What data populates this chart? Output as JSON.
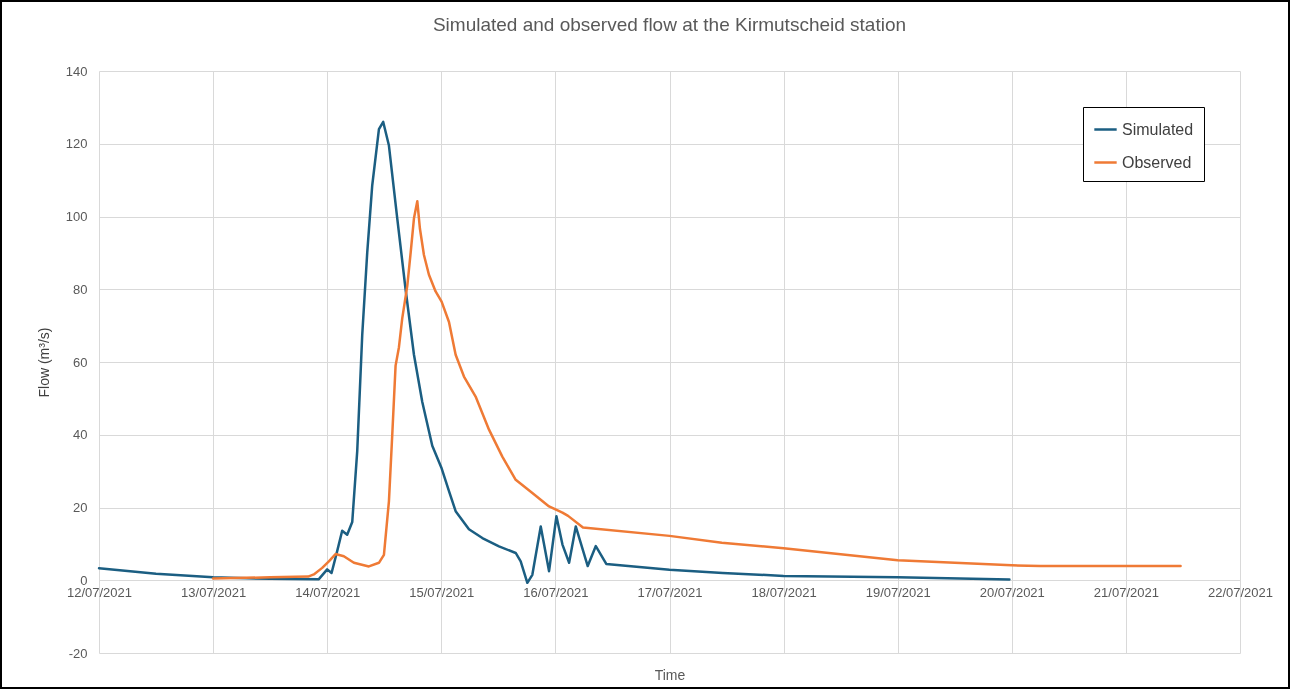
{
  "chart_data": {
    "type": "line",
    "title": "Simulated and observed flow at the Kirmutscheid station",
    "xlabel": "Time",
    "ylabel": "Flow  (m³/s)",
    "xlim": [
      "2021-07-12T00:00",
      "2021-07-22T00:00"
    ],
    "xticks": [
      {
        "value": "2021-07-12T00:00",
        "label": "12/07/2021"
      },
      {
        "value": "2021-07-13T00:00",
        "label": "13/07/2021"
      },
      {
        "value": "2021-07-14T00:00",
        "label": "14/07/2021"
      },
      {
        "value": "2021-07-15T00:00",
        "label": "15/07/2021"
      },
      {
        "value": "2021-07-16T00:00",
        "label": "16/07/2021"
      },
      {
        "value": "2021-07-17T00:00",
        "label": "17/07/2021"
      },
      {
        "value": "2021-07-18T00:00",
        "label": "18/07/2021"
      },
      {
        "value": "2021-07-19T00:00",
        "label": "19/07/2021"
      },
      {
        "value": "2021-07-20T00:00",
        "label": "20/07/2021"
      },
      {
        "value": "2021-07-21T00:00",
        "label": "21/07/2021"
      },
      {
        "value": "2021-07-22T00:00",
        "label": "22/07/2021"
      }
    ],
    "ylim": [
      -20,
      140
    ],
    "yticks": [
      -20,
      0,
      20,
      40,
      60,
      80,
      100,
      120,
      140
    ],
    "grid": true,
    "legend": "top right",
    "marker": "none",
    "line_style": "solid",
    "series": [
      {
        "name": "Simulated",
        "color": "#1b5e82",
        "x": [
          "2021-07-12T00:00",
          "2021-07-12T12:00",
          "2021-07-13T00:00",
          "2021-07-13T12:00",
          "2021-07-13T22:15",
          "2021-07-14T00:00",
          "2021-07-14T00:55",
          "2021-07-14T02:06",
          "2021-07-14T03:09",
          "2021-07-14T04:12",
          "2021-07-14T05:16",
          "2021-07-14T06:19",
          "2021-07-14T07:22",
          "2021-07-14T08:25",
          "2021-07-14T09:28",
          "2021-07-14T10:53",
          "2021-07-14T11:47",
          "2021-07-14T12:59",
          "2021-07-14T14:44",
          "2021-07-14T16:29",
          "2021-07-14T18:15",
          "2021-07-14T20:00",
          "2021-07-14T22:06",
          "2021-07-15T00:00",
          "2021-07-15T01:37",
          "2021-07-15T03:01",
          "2021-07-15T05:49",
          "2021-07-15T08:38",
          "2021-07-15T12:08",
          "2021-07-15T15:39",
          "2021-07-15T16:42",
          "2021-07-15T18:06",
          "2021-07-15T19:09",
          "2021-07-15T20:55",
          "2021-07-15T22:40",
          "2021-07-16T00:13",
          "2021-07-16T01:29",
          "2021-07-16T02:53",
          "2021-07-16T04:17",
          "2021-07-16T06:48",
          "2021-07-16T08:30",
          "2021-07-16T10:42",
          "2021-07-17T00:00",
          "2021-07-17T11:12",
          "2021-07-18T00:00",
          "2021-07-19T00:00",
          "2021-07-19T23:30"
        ],
        "values": [
          3.3,
          1.8,
          0.8,
          0.4,
          0.3,
          3,
          2,
          8,
          13.6,
          12.5,
          16,
          35.5,
          67.4,
          90,
          108.5,
          124,
          126,
          119.5,
          99.5,
          80,
          62,
          49,
          37,
          31,
          24.5,
          19,
          14,
          11.6,
          9.3,
          7.5,
          5.2,
          -0.7,
          1.5,
          14.8,
          2.5,
          17.6,
          9.8,
          4.8,
          14.8,
          3.9,
          9.4,
          4.5,
          2.9,
          2,
          1.2,
          0.8,
          0.2
        ]
      },
      {
        "name": "Observed",
        "color": "#ef7a35",
        "x": [
          "2021-07-13T00:00",
          "2021-07-13T12:00",
          "2021-07-13T20:00",
          "2021-07-13T21:11",
          "2021-07-13T22:57",
          "2021-07-14T00:21",
          "2021-07-14T01:45",
          "2021-07-14T03:30",
          "2021-07-14T05:37",
          "2021-07-14T08:46",
          "2021-07-14T10:53",
          "2021-07-14T11:56",
          "2021-07-14T12:59",
          "2021-07-14T13:41",
          "2021-07-14T14:23",
          "2021-07-14T15:05",
          "2021-07-14T15:47",
          "2021-07-14T16:51",
          "2021-07-14T17:33",
          "2021-07-14T18:15",
          "2021-07-14T18:57",
          "2021-07-14T19:30",
          "2021-07-14T20:21",
          "2021-07-14T21:24",
          "2021-07-14T22:48",
          "2021-07-15T00:04",
          "2021-07-15T01:37",
          "2021-07-15T03:01",
          "2021-07-15T04:46",
          "2021-07-15T07:13",
          "2021-07-15T10:02",
          "2021-07-15T12:50",
          "2021-07-15T15:39",
          "2021-07-15T19:09",
          "2021-07-15T22:40",
          "2021-07-16T01:29",
          "2021-07-16T02:40",
          "2021-07-16T05:48",
          "2021-07-17T00:00",
          "2021-07-17T11:00",
          "2021-07-18T00:00",
          "2021-07-19T00:00",
          "2021-07-20T00:00",
          "2021-07-20T06:00",
          "2021-07-21T11:30"
        ],
        "values": [
          0.5,
          0.8,
          1,
          1.6,
          3.4,
          5.2,
          7.2,
          6.6,
          4.8,
          3.8,
          4.8,
          7,
          21.7,
          40,
          59,
          64,
          72,
          81,
          90,
          99.5,
          104.2,
          96.7,
          89.4,
          84,
          79.4,
          76.6,
          71,
          62,
          56,
          50.5,
          41.4,
          34,
          27.6,
          24,
          20.3,
          18.6,
          17.7,
          14.5,
          12.2,
          10.3,
          8.8,
          5.5,
          4.1,
          3.9,
          3.9
        ]
      }
    ]
  }
}
